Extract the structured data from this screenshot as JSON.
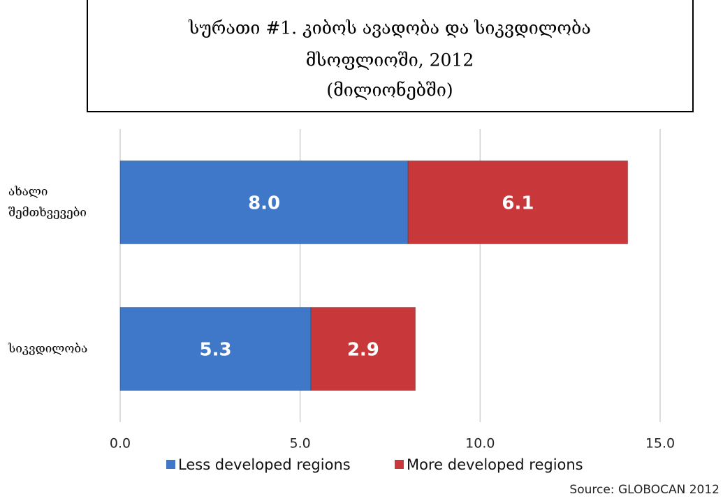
{
  "chart_data": {
    "type": "bar",
    "orientation": "horizontal",
    "stacked": true,
    "title": [
      "სურათი #1. კიბოს ავადობა და სიკვდილობა",
      "მსოფლიოში, 2012",
      "(მილიონებში)"
    ],
    "categories": [
      "ახალი შემთხვევები",
      "სიკვდილობა"
    ],
    "series": [
      {
        "name": "Less developed regions",
        "color": "#3f78c8",
        "values": [
          8.0,
          5.3
        ],
        "value_labels": [
          "8.0",
          "5.3"
        ]
      },
      {
        "name": "More developed regions",
        "color": "#c8383a",
        "values": [
          6.1,
          2.9
        ],
        "value_labels": [
          "6.1",
          "2.9"
        ]
      }
    ],
    "xlim": [
      0,
      15
    ],
    "xticks": [
      {
        "value": 0,
        "label": "0.0"
      },
      {
        "value": 5,
        "label": "5.0"
      },
      {
        "value": 10,
        "label": "10.0"
      },
      {
        "value": 15,
        "label": "15.0"
      }
    ],
    "grid": true,
    "legend": "bottom",
    "source": "Source: GLOBOCAN 2012"
  }
}
